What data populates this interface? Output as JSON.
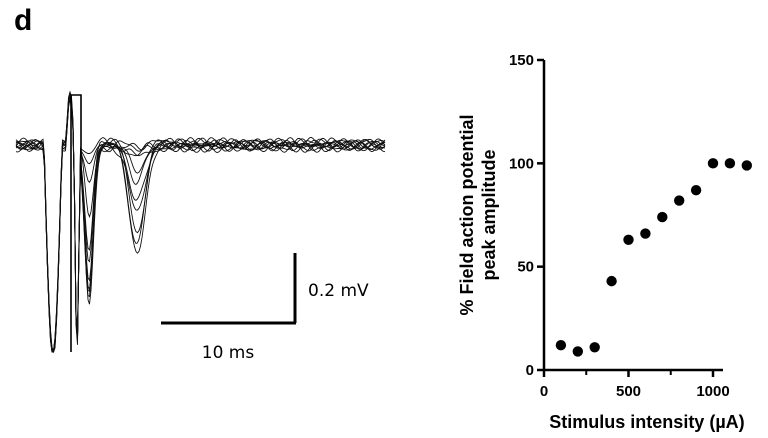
{
  "panel_label": "d",
  "trace": {
    "scale_bar_voltage": "0.2 mV",
    "scale_bar_time": "10 ms"
  },
  "chart_data": {
    "type": "scatter",
    "xlabel": "Stimulus intensity (µA)",
    "ylabel_line1": "% Field action potential",
    "ylabel_line2": "peak amplitude",
    "xlim": [
      0,
      1200
    ],
    "ylim": [
      0,
      150
    ],
    "xticks": [
      0,
      500,
      1000
    ],
    "yticks": [
      0,
      50,
      100,
      150
    ],
    "x": [
      100,
      200,
      300,
      400,
      500,
      600,
      700,
      800,
      900,
      1000,
      1100,
      1200
    ],
    "y": [
      12,
      9,
      11,
      43,
      63,
      66,
      74,
      82,
      87,
      100,
      100,
      99
    ],
    "marker_color": "#000000"
  }
}
